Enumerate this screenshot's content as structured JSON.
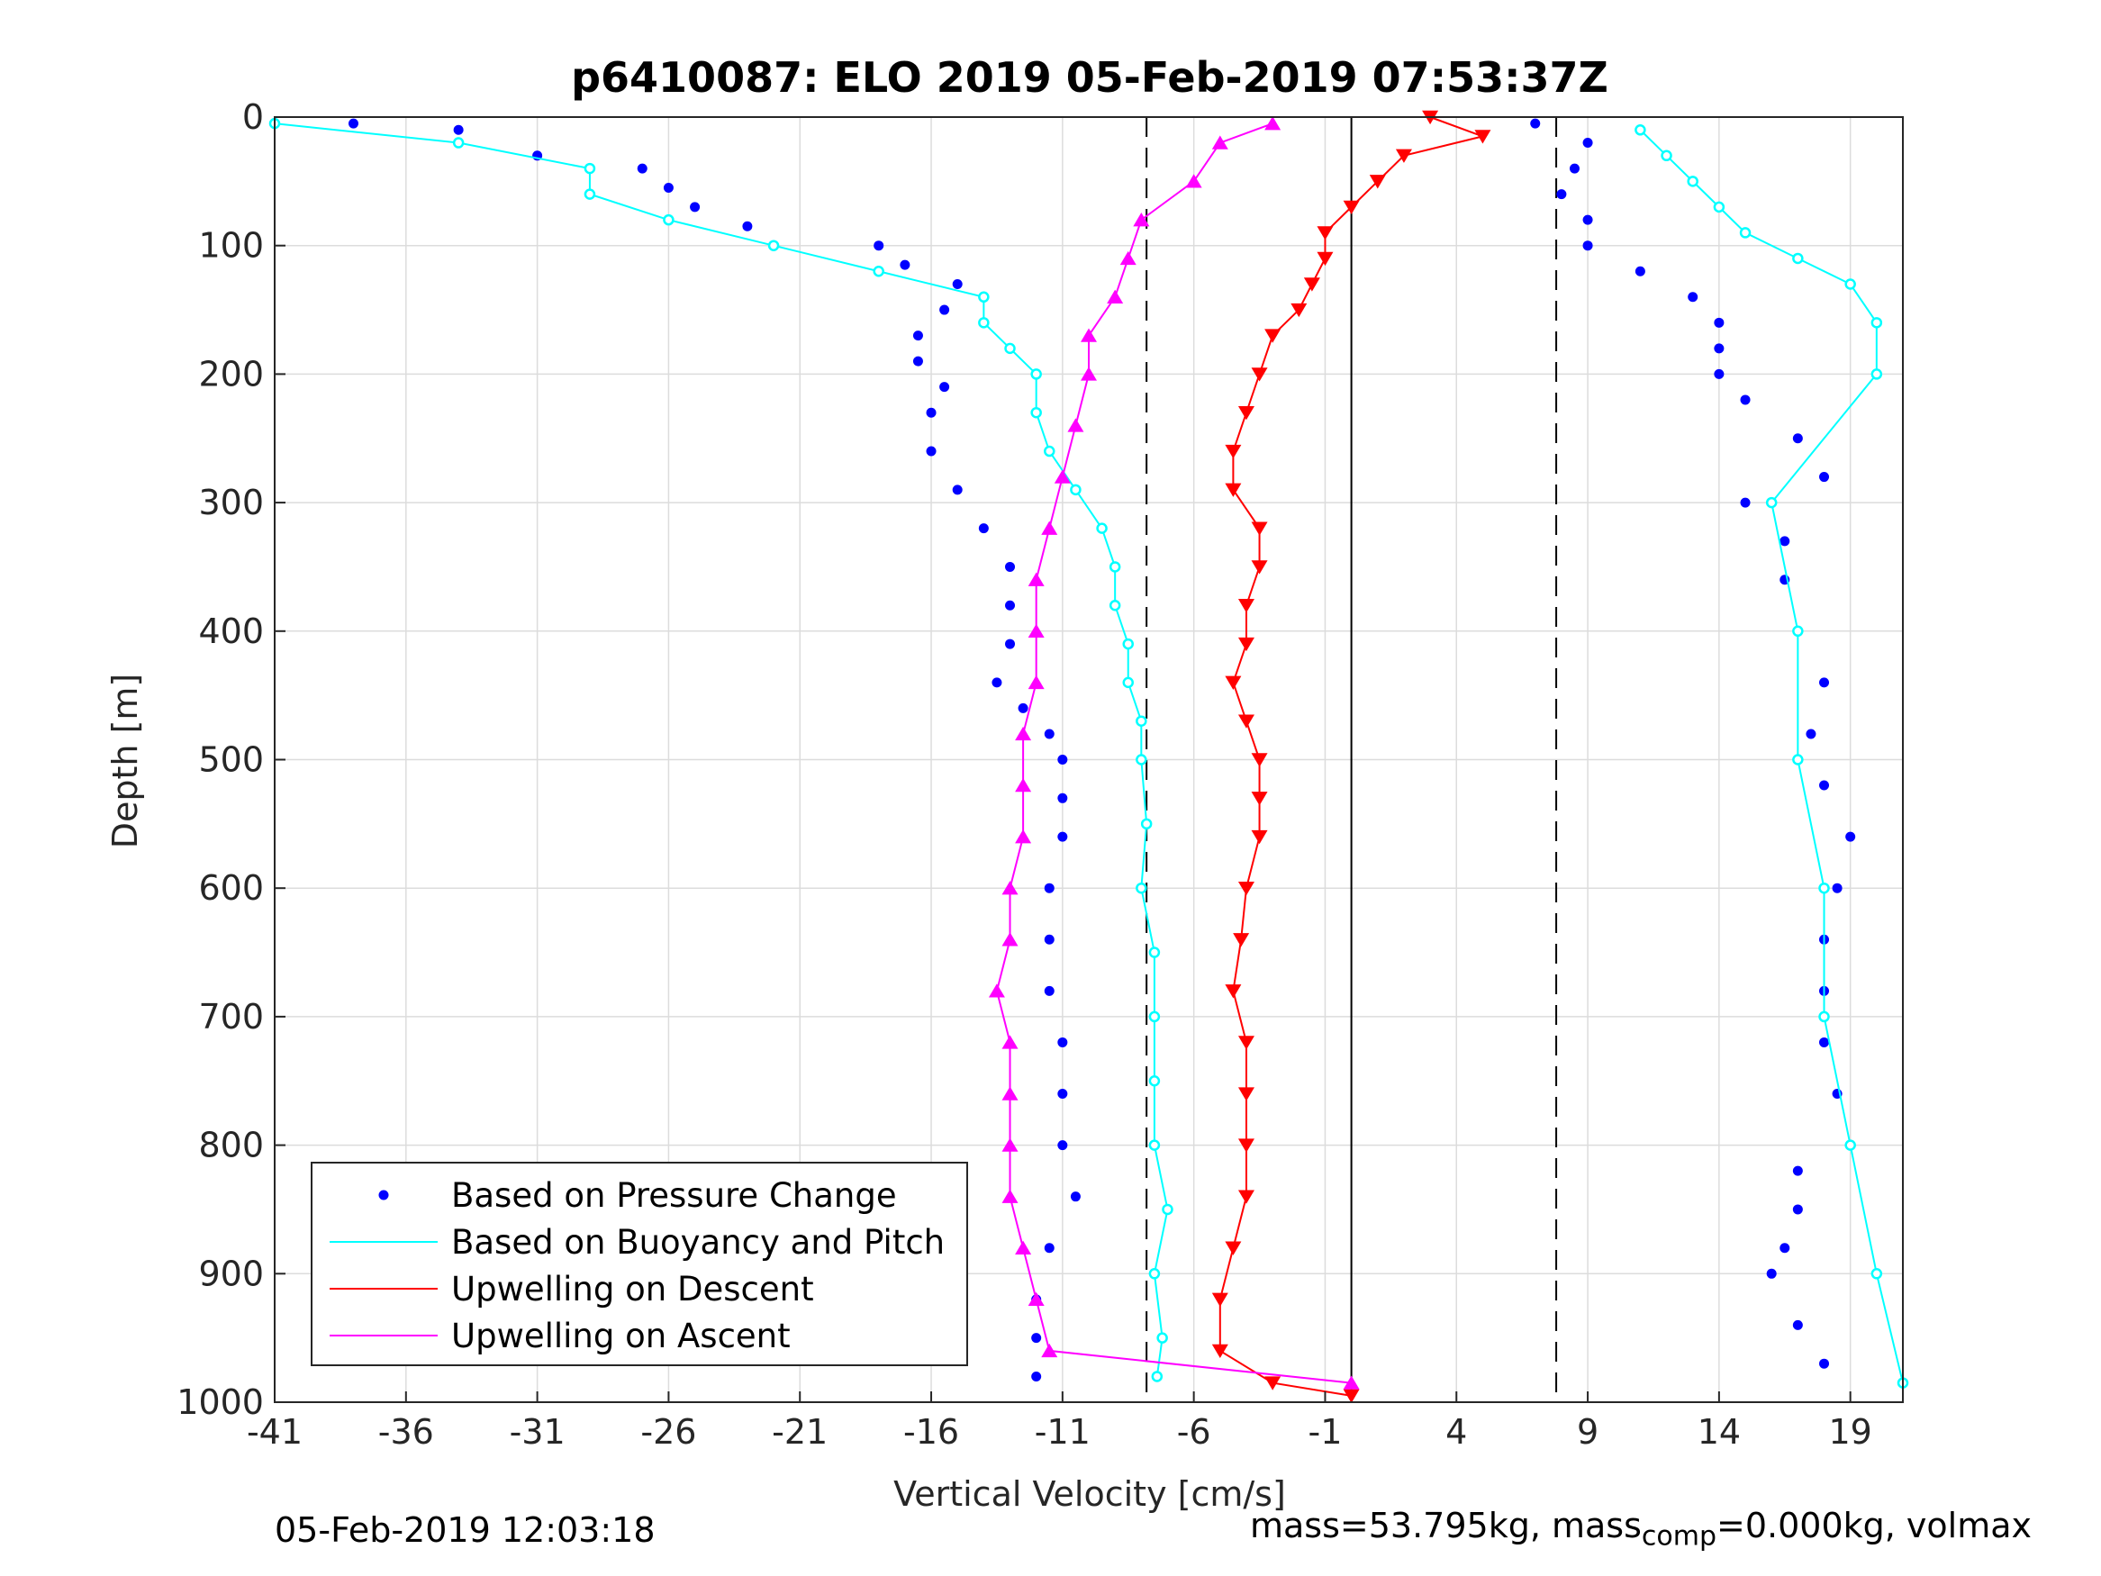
{
  "chart_data": {
    "type": "scatter",
    "title": "p6410087: ELO 2019 05-Feb-2019 07:53:37Z",
    "xlabel": "Vertical Velocity [cm/s]",
    "ylabel": "Depth [m]",
    "xlim": [
      -41,
      21
    ],
    "ylim": [
      0,
      1000
    ],
    "y_reversed": true,
    "grid": true,
    "xticks": [
      -41,
      -36,
      -31,
      -26,
      -21,
      -16,
      -11,
      -6,
      -1,
      4,
      9,
      14,
      19
    ],
    "yticks": [
      0,
      100,
      200,
      300,
      400,
      500,
      600,
      700,
      800,
      900,
      1000
    ],
    "reference_lines": [
      {
        "x": -7.8,
        "style": "dashed"
      },
      {
        "x": 0,
        "style": "solid"
      },
      {
        "x": 7.8,
        "style": "dashed"
      }
    ],
    "legend_position": "bottom-left",
    "legend": [
      {
        "label": "Based on Pressure Change",
        "color": "#0000ff",
        "style": "dot"
      },
      {
        "label": "Based on Buoyancy and Pitch",
        "color": "#00ffff",
        "style": "line"
      },
      {
        "label": "Upwelling on Descent",
        "color": "#ff0000",
        "style": "line"
      },
      {
        "label": "Upwelling on Ascent",
        "color": "#ff00ff",
        "style": "line"
      }
    ],
    "series": [
      {
        "name": "Based on Pressure Change",
        "color": "#0000ff",
        "marker": "dot",
        "profiles": [
          {
            "label": "descent",
            "depth": [
              5,
              10,
              30,
              40,
              55,
              70,
              85,
              100,
              115,
              130,
              150,
              170,
              190,
              210,
              230,
              260,
              290,
              320,
              350,
              380,
              410,
              440,
              460,
              480,
              500,
              530,
              560,
              600,
              640,
              680,
              720,
              760,
              800,
              840,
              880,
              920,
              950,
              980
            ],
            "velocity": [
              -38,
              -34,
              -31,
              -27,
              -26,
              -25,
              -23,
              -18,
              -17,
              -15,
              -15.5,
              -16.5,
              -16.5,
              -15.5,
              -16,
              -16,
              -15,
              -14,
              -13,
              -13,
              -13,
              -13.5,
              -12.5,
              -11.5,
              -11,
              -11,
              -11,
              -11.5,
              -11.5,
              -11.5,
              -11,
              -11,
              -11,
              -10.5,
              -11.5,
              -12,
              -12,
              -12
            ]
          },
          {
            "label": "ascent",
            "depth": [
              970,
              940,
              900,
              880,
              850,
              820,
              800,
              760,
              720,
              680,
              640,
              600,
              560,
              520,
              480,
              440,
              400,
              360,
              330,
              300,
              280,
              250,
              220,
              200,
              180,
              160,
              140,
              120,
              100,
              80,
              60,
              40,
              20,
              5
            ],
            "velocity": [
              18,
              17,
              16,
              16.5,
              17,
              17,
              19,
              18.5,
              18,
              18,
              18,
              18.5,
              19,
              18,
              17.5,
              18,
              17,
              16.5,
              16.5,
              15,
              18,
              17,
              15,
              14,
              14,
              14,
              13,
              11,
              9,
              9,
              8,
              8.5,
              9,
              7
            ]
          }
        ]
      },
      {
        "name": "Based on Buoyancy and Pitch",
        "color": "#00ffff",
        "marker": "circle",
        "profiles": [
          {
            "label": "descent",
            "depth": [
              5,
              20,
              40,
              60,
              80,
              100,
              120,
              140,
              160,
              180,
              200,
              230,
              260,
              290,
              320,
              350,
              380,
              410,
              440,
              470,
              500,
              550,
              600,
              650,
              700,
              750,
              800,
              850,
              900,
              950,
              980
            ],
            "velocity": [
              -41,
              -34,
              -29,
              -29,
              -26,
              -22,
              -18,
              -14,
              -14,
              -13,
              -12,
              -12,
              -11.5,
              -10.5,
              -9.5,
              -9,
              -9,
              -8.5,
              -8.5,
              -8,
              -8,
              -7.8,
              -8,
              -7.5,
              -7.5,
              -7.5,
              -7.5,
              -7,
              -7.5,
              -7.2,
              -7.4
            ]
          },
          {
            "label": "ascent",
            "depth": [
              985,
              900,
              800,
              700,
              600,
              500,
              400,
              300,
              200,
              160,
              130,
              110,
              90,
              70,
              50,
              30,
              10
            ],
            "velocity": [
              21,
              20,
              19,
              18,
              18,
              17,
              17,
              16,
              20,
              20,
              19,
              17,
              15,
              14,
              13,
              12,
              11
            ]
          }
        ]
      },
      {
        "name": "Upwelling on Descent",
        "color": "#ff0000",
        "marker": "triangle-down",
        "profiles": [
          {
            "label": "descent",
            "depth": [
              0,
              15,
              30,
              50,
              70,
              90,
              110,
              130,
              150,
              170,
              200,
              230,
              260,
              290,
              320,
              350,
              380,
              410,
              440,
              470,
              500,
              530,
              560,
              600,
              640,
              680,
              720,
              760,
              800,
              840,
              880,
              920,
              960,
              985,
              995
            ],
            "velocity": [
              3,
              5,
              2,
              1,
              0,
              -1,
              -1,
              -1.5,
              -2,
              -3,
              -3.5,
              -4,
              -4.5,
              -4.5,
              -3.5,
              -3.5,
              -4,
              -4,
              -4.5,
              -4,
              -3.5,
              -3.5,
              -3.5,
              -4,
              -4.2,
              -4.5,
              -4,
              -4,
              -4,
              -4,
              -4.5,
              -5,
              -5,
              -3,
              0
            ]
          }
        ]
      },
      {
        "name": "Upwelling on Ascent",
        "color": "#ff00ff",
        "marker": "triangle-up",
        "profiles": [
          {
            "label": "ascent",
            "depth": [
              985,
              960,
              920,
              880,
              840,
              800,
              760,
              720,
              680,
              640,
              600,
              560,
              520,
              480,
              440,
              400,
              360,
              320,
              280,
              240,
              200,
              170,
              140,
              110,
              80,
              50,
              20,
              5
            ],
            "velocity": [
              0,
              -11.5,
              -12,
              -12.5,
              -13,
              -13,
              -13,
              -13,
              -13.5,
              -13,
              -13,
              -12.5,
              -12.5,
              -12.5,
              -12,
              -12,
              -12,
              -11.5,
              -11,
              -10.5,
              -10,
              -10,
              -9,
              -8.5,
              -8,
              -6,
              -5,
              -3
            ]
          }
        ]
      }
    ]
  },
  "footer": {
    "timestamp": "05-Feb-2019 12:03:18",
    "mass_text": "mass=53.795kg, mass",
    "comp_sub": "comp",
    "mass_rest": "=0.000kg, volmax"
  }
}
